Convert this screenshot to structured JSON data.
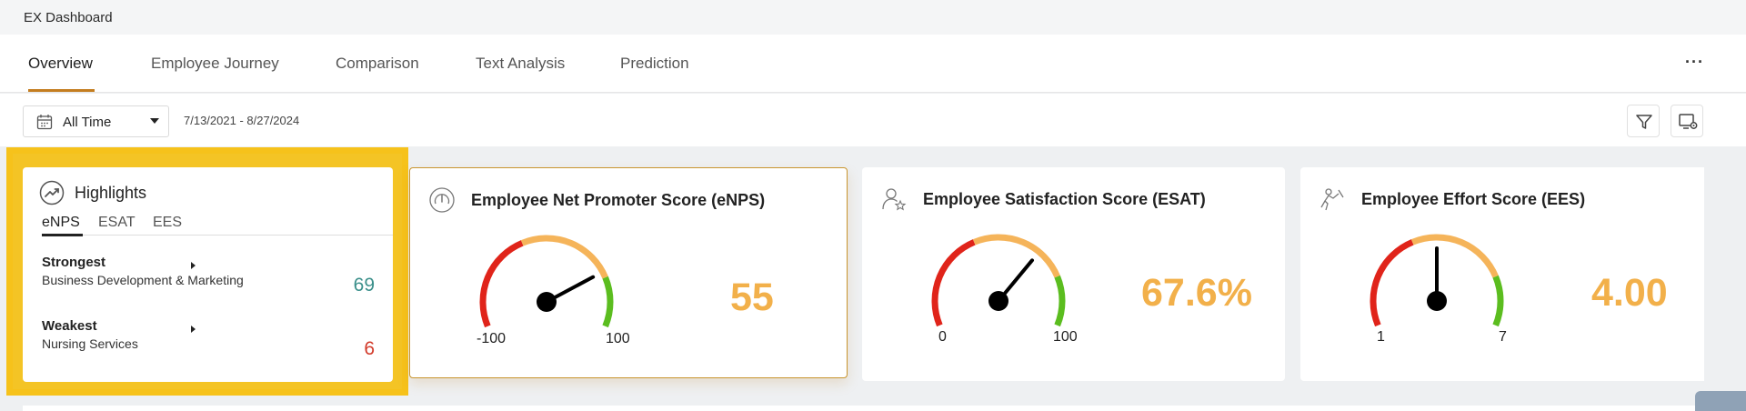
{
  "app": {
    "title": "EX Dashboard"
  },
  "tabs": [
    "Overview",
    "Employee Journey",
    "Comparison",
    "Text Analysis",
    "Prediction"
  ],
  "active_tab": "Overview",
  "more_label": "···",
  "filter": {
    "period": "All Time",
    "date_range": "7/13/2021 - 8/27/2024"
  },
  "highlights": {
    "title": "Highlights",
    "tabs": [
      "eNPS",
      "ESAT",
      "EES"
    ],
    "active_tab": "eNPS",
    "strongest": {
      "label": "Strongest",
      "name": "Business Development & Marketing",
      "score": "69",
      "color": "#3a8f8a"
    },
    "weakest": {
      "label": "Weakest",
      "name": "Nursing Services",
      "score": "6",
      "color": "#d23a2a"
    }
  },
  "kpis": [
    {
      "title": "Employee Net Promoter Score (eNPS)",
      "icon": "gauge-icon",
      "value": "55",
      "min": "-100",
      "max": "100",
      "level": 0.775
    },
    {
      "title": "Employee Satisfaction Score (ESAT)",
      "icon": "user-star-icon",
      "value": "67.6%",
      "min": "0",
      "max": "100",
      "level": 0.676
    },
    {
      "title": "Employee Effort Score (EES)",
      "icon": "push-effort-icon",
      "value": "4.00",
      "min": "1",
      "max": "7",
      "level": 0.5
    }
  ],
  "colors": {
    "accent": "#c47d1f",
    "highlight": "#f6c21b",
    "value": "#f2b04a",
    "red": "#e0241a",
    "orange": "#f5b45a",
    "green": "#5bbd1f"
  }
}
